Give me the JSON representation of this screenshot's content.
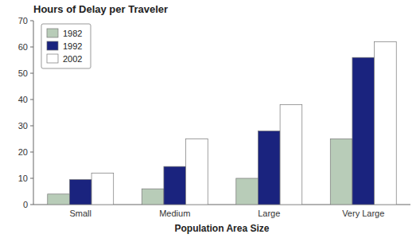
{
  "chart_data": {
    "type": "bar",
    "title": "Hours of Delay per Traveler",
    "xlabel": "Population Area Size",
    "categories": [
      "Small",
      "Medium",
      "Large",
      "Very Large"
    ],
    "series": [
      {
        "name": "1982",
        "color": "#b8ccb8",
        "values": [
          4,
          6,
          10,
          25
        ]
      },
      {
        "name": "1992",
        "color": "#1a237e",
        "values": [
          9.5,
          14.5,
          28,
          56
        ]
      },
      {
        "name": "2002",
        "color": "#ffffff",
        "values": [
          12,
          25,
          38,
          62
        ]
      }
    ],
    "ylim": [
      0,
      70
    ],
    "yticks": [
      0,
      10,
      20,
      30,
      40,
      50,
      60,
      70
    ],
    "legend": "upper left",
    "grid": false
  }
}
